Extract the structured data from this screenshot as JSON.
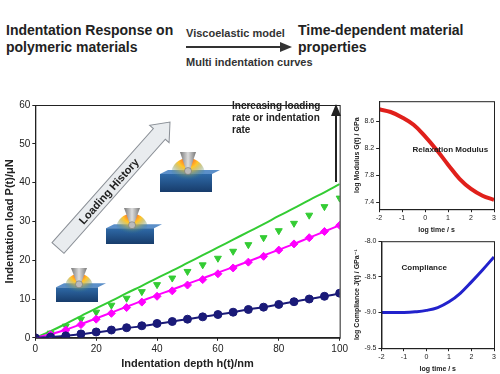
{
  "header": {
    "left": "Indentation Response on polymeric materials",
    "arrow_top": "Viscoelastic model",
    "arrow_bottom": "Multi indentation curves",
    "right": "Time-dependent material properties"
  },
  "chart_data": [
    {
      "type": "scatter",
      "x_label": "Indentation depth h(t)/nm",
      "y_label": "Indentation load P(t)/μN",
      "annotations": [
        "Loading History",
        "Increasing loading rate or indentation rate"
      ],
      "x": [
        0,
        5,
        10,
        15,
        20,
        25,
        30,
        35,
        40,
        45,
        50,
        55,
        60,
        65,
        70,
        75,
        80,
        85,
        90,
        95,
        100
      ],
      "series": [
        {
          "type": "line",
          "color": "#1a1a78",
          "line_style": "solid",
          "values": [
            0,
            0.2,
            0.5,
            0.9,
            1.4,
            1.9,
            2.5,
            3.0,
            3.6,
            4.2,
            4.8,
            5.4,
            6.0,
            6.6,
            7.3,
            7.9,
            8.6,
            9.3,
            10.0,
            10.7,
            11.4
          ]
        },
        {
          "type": "scatter",
          "color": "#1a1a78",
          "marker": "circle",
          "values": [
            0,
            0.2,
            0.5,
            1.0,
            1.5,
            2.0,
            2.6,
            3.1,
            3.7,
            4.2,
            4.8,
            5.4,
            6.0,
            6.6,
            7.3,
            7.9,
            8.6,
            9.3,
            10.0,
            10.7,
            11.5
          ]
        },
        {
          "type": "line",
          "color": "#ff00ff",
          "line_style": "solid",
          "values": [
            0,
            0.9,
            2.1,
            3.5,
            5.0,
            6.5,
            8.0,
            9.5,
            11.0,
            12.4,
            13.9,
            15.3,
            16.8,
            18.2,
            19.7,
            21.2,
            22.7,
            24.2,
            25.8,
            27.4,
            29.0
          ]
        },
        {
          "type": "scatter",
          "color": "#ff00ff",
          "marker": "diamond",
          "values": [
            0,
            0.8,
            2.0,
            3.4,
            4.8,
            6.3,
            7.8,
            9.2,
            10.7,
            12.1,
            13.6,
            15.0,
            16.5,
            18.0,
            19.5,
            21.0,
            22.6,
            24.2,
            25.8,
            27.4,
            29.0
          ]
        },
        {
          "type": "line",
          "color": "#33cc33",
          "line_style": "solid",
          "values": [
            0,
            1.7,
            3.6,
            5.6,
            7.6,
            9.5,
            11.5,
            13.4,
            15.4,
            17.3,
            19.3,
            21.3,
            23.3,
            25.3,
            27.3,
            29.3,
            31.4,
            33.4,
            35.5,
            37.5,
            39.6
          ]
        },
        {
          "type": "scatter",
          "color": "#33cc33",
          "marker": "triangle-down",
          "values": [
            0,
            1.2,
            3.0,
            4.8,
            6.6,
            8.4,
            10.2,
            11.9,
            13.7,
            15.4,
            17.1,
            18.8,
            20.5,
            22.3,
            24.0,
            25.8,
            27.6,
            29.5,
            31.6,
            33.8,
            36.0
          ]
        }
      ],
      "xlim": [
        0,
        100
      ],
      "xticks": [
        0,
        20,
        40,
        60,
        80,
        100
      ],
      "ylim": [
        0,
        60
      ],
      "yticks": [
        0,
        10,
        20,
        30,
        40,
        50,
        60
      ],
      "grid": false
    },
    {
      "type": "line",
      "x_label": "log time / s",
      "y_label": "log Modulus G(t) / GPa",
      "annotations": [
        "Relaxation Modulus"
      ],
      "x": [
        -2,
        -1.5,
        -1,
        -0.5,
        0,
        0.5,
        1,
        1.5,
        2,
        2.5,
        3
      ],
      "series": [
        {
          "color": "#e0201b",
          "line_style": "solid",
          "values": [
            8.78,
            8.74,
            8.66,
            8.55,
            8.38,
            8.18,
            7.96,
            7.75,
            7.6,
            7.5,
            7.44
          ]
        }
      ],
      "xlim": [
        -2,
        3
      ],
      "xticks": [
        -2,
        -1,
        0,
        1,
        2,
        3
      ],
      "ylim": [
        7.3,
        8.9
      ],
      "yticks": [
        7.4,
        7.8,
        8.2,
        8.6
      ],
      "grid": false
    },
    {
      "type": "line",
      "x_label": "log time / s",
      "y_label": "log Compliance J(t) / GPa⁻¹",
      "annotations": [
        "Compliance"
      ],
      "x": [
        -2,
        -1.5,
        -1,
        -0.5,
        0,
        0.5,
        1,
        1.5,
        2,
        2.5,
        3
      ],
      "series": [
        {
          "color": "#2222cc",
          "line_style": "solid",
          "values": [
            -9.0,
            -9.0,
            -9.0,
            -8.99,
            -8.97,
            -8.93,
            -8.85,
            -8.73,
            -8.57,
            -8.4,
            -8.22
          ]
        }
      ],
      "xlim": [
        -2,
        3
      ],
      "xticks": [
        -2,
        -1,
        0,
        1,
        2,
        3
      ],
      "ylim": [
        -9.5,
        -8.0
      ],
      "yticks": [
        {
          "value": -9.5,
          "label": "-9.5"
        },
        {
          "value": -9,
          "label": "-9.0"
        },
        {
          "value": -8.5,
          "label": "-8.5"
        },
        {
          "value": -8,
          "label": "-8.0"
        }
      ],
      "grid": false
    }
  ]
}
